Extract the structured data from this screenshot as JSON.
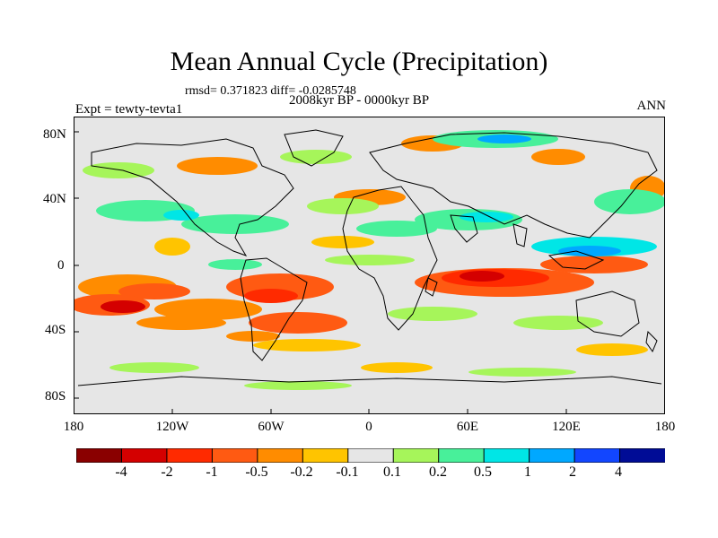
{
  "title": "Mean Annual Cycle (Precipitation)",
  "stats": "rmsd= 0.371823 diff= -0.0285748",
  "experiment": "Expt = tewty-tevta1",
  "period": "2008kyr BP - 0000kyr BP",
  "season": "ANN",
  "lat_labels": [
    "80N",
    "40N",
    "0",
    "40S",
    "80S"
  ],
  "lon_labels": [
    "180",
    "120W",
    "60W",
    "0",
    "60E",
    "120E",
    "180"
  ],
  "colorbar": {
    "labels": [
      "-4",
      "-2",
      "-1",
      "-0.5",
      "-0.2",
      "-0.1",
      "0.1",
      "0.2",
      "0.5",
      "1",
      "2",
      "4"
    ],
    "colors": [
      "#8a0000",
      "#d40000",
      "#ff2a00",
      "#ff5a12",
      "#ff8c00",
      "#ffc400",
      "#e6e6e6",
      "#a6f55a",
      "#48f09a",
      "#00e6e6",
      "#00a8ff",
      "#1246ff",
      "#000c96"
    ]
  },
  "map_background": "#e6e6e6"
}
